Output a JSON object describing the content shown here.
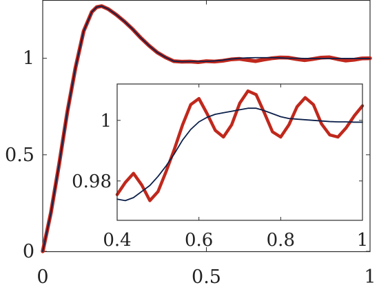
{
  "chart_data": [
    {
      "id": "main",
      "type": "line",
      "title": "",
      "xlabel": "",
      "ylabel": "",
      "xlim": [
        0,
        1
      ],
      "ylim": [
        0,
        1.3
      ],
      "xticks": [
        0,
        0.5,
        1
      ],
      "xtick_labels": [
        "0",
        "0.5",
        "1"
      ],
      "yticks": [
        0,
        0.5,
        1
      ],
      "ytick_labels": [
        "0",
        "0.5",
        "1"
      ],
      "grid": false,
      "legend": "none",
      "series": [
        {
          "color": "#c0281c",
          "style": "thick",
          "points": [
            [
              0,
              0
            ],
            [
              0.025,
              0.2
            ],
            [
              0.05,
              0.45
            ],
            [
              0.075,
              0.72
            ],
            [
              0.1,
              0.95
            ],
            [
              0.125,
              1.14
            ],
            [
              0.15,
              1.24
            ],
            [
              0.165,
              1.265
            ],
            [
              0.18,
              1.27
            ],
            [
              0.2,
              1.255
            ],
            [
              0.225,
              1.225
            ],
            [
              0.25,
              1.19
            ],
            [
              0.275,
              1.15
            ],
            [
              0.3,
              1.105
            ],
            [
              0.325,
              1.065
            ],
            [
              0.35,
              1.03
            ],
            [
              0.375,
              1.005
            ],
            [
              0.4,
              0.985
            ],
            [
              0.425,
              0.982
            ],
            [
              0.45,
              0.983
            ],
            [
              0.475,
              0.98
            ],
            [
              0.5,
              0.985
            ],
            [
              0.525,
              0.983
            ],
            [
              0.55,
              0.987
            ],
            [
              0.575,
              0.994
            ],
            [
              0.6,
              0.997
            ],
            [
              0.625,
              0.991
            ],
            [
              0.65,
              0.985
            ],
            [
              0.675,
              0.993
            ],
            [
              0.7,
              1.0
            ],
            [
              0.725,
              1.004
            ],
            [
              0.75,
              1.003
            ],
            [
              0.775,
              0.996
            ],
            [
              0.8,
              0.99
            ],
            [
              0.825,
              0.996
            ],
            [
              0.85,
              1.003
            ],
            [
              0.875,
              1.005
            ],
            [
              0.9,
              0.996
            ],
            [
              0.925,
              0.988
            ],
            [
              0.95,
              0.992
            ],
            [
              0.975,
              0.999
            ],
            [
              1.0,
              1.0
            ]
          ]
        },
        {
          "color": "#0b1f4a",
          "style": "thin",
          "points": [
            [
              0,
              0
            ],
            [
              0.025,
              0.2
            ],
            [
              0.05,
              0.45
            ],
            [
              0.075,
              0.72
            ],
            [
              0.1,
              0.95
            ],
            [
              0.125,
              1.14
            ],
            [
              0.15,
              1.24
            ],
            [
              0.165,
              1.265
            ],
            [
              0.18,
              1.27
            ],
            [
              0.2,
              1.255
            ],
            [
              0.225,
              1.225
            ],
            [
              0.25,
              1.19
            ],
            [
              0.275,
              1.15
            ],
            [
              0.3,
              1.105
            ],
            [
              0.325,
              1.065
            ],
            [
              0.35,
              1.03
            ],
            [
              0.375,
              1.005
            ],
            [
              0.4,
              0.985
            ],
            [
              0.425,
              0.982
            ],
            [
              0.45,
              0.983
            ],
            [
              0.475,
              0.983
            ],
            [
              0.5,
              0.984
            ],
            [
              0.525,
              0.986
            ],
            [
              0.55,
              0.99
            ],
            [
              0.575,
              0.996
            ],
            [
              0.6,
              1.0
            ],
            [
              0.625,
              1.002
            ],
            [
              0.65,
              1.003
            ],
            [
              0.675,
              1.003
            ],
            [
              0.7,
              1.003
            ],
            [
              0.725,
              1.002
            ],
            [
              0.75,
              1.0
            ],
            [
              0.775,
              1.0
            ],
            [
              0.8,
              0.999
            ],
            [
              0.85,
              0.999
            ],
            [
              0.9,
              0.999
            ],
            [
              0.95,
              0.999
            ],
            [
              1.0,
              0.999
            ]
          ]
        }
      ]
    },
    {
      "id": "inset",
      "type": "line",
      "title": "",
      "xlabel": "",
      "ylabel": "",
      "xlim": [
        0.4,
        1
      ],
      "ylim": [
        0.967,
        1.012
      ],
      "xticks": [
        0.4,
        0.6,
        0.8,
        1
      ],
      "xtick_labels": [
        "0.4",
        "0.6",
        "0.8",
        "1"
      ],
      "yticks": [
        0.98,
        1
      ],
      "ytick_labels": [
        "0.98",
        "1"
      ],
      "grid": false,
      "legend": "none",
      "series": [
        {
          "color": "#c0281c",
          "style": "thick",
          "points": [
            [
              0.4,
              0.9755
            ],
            [
              0.42,
              0.9795
            ],
            [
              0.44,
              0.9825
            ],
            [
              0.46,
              0.9787
            ],
            [
              0.48,
              0.9735
            ],
            [
              0.5,
              0.9765
            ],
            [
              0.52,
              0.9832
            ],
            [
              0.54,
              0.9905
            ],
            [
              0.56,
              0.9985
            ],
            [
              0.58,
              1.0052
            ],
            [
              0.6,
              1.0072
            ],
            [
              0.62,
              1.0022
            ],
            [
              0.64,
              0.9967
            ],
            [
              0.66,
              0.9945
            ],
            [
              0.68,
              0.9985
            ],
            [
              0.7,
              1.0057
            ],
            [
              0.72,
              1.0097
            ],
            [
              0.74,
              1.0085
            ],
            [
              0.76,
              1.0025
            ],
            [
              0.78,
              0.9962
            ],
            [
              0.8,
              0.9945
            ],
            [
              0.82,
              0.9985
            ],
            [
              0.84,
              1.0045
            ],
            [
              0.86,
              1.0075
            ],
            [
              0.88,
              1.0052
            ],
            [
              0.9,
              0.9988
            ],
            [
              0.92,
              0.9952
            ],
            [
              0.94,
              0.9945
            ],
            [
              0.96,
              0.9975
            ],
            [
              0.98,
              1.0015
            ],
            [
              1.0,
              1.0048
            ]
          ]
        },
        {
          "color": "#0b1f4a",
          "style": "thin",
          "points": [
            [
              0.4,
              0.974
            ],
            [
              0.42,
              0.9735
            ],
            [
              0.44,
              0.9745
            ],
            [
              0.46,
              0.9765
            ],
            [
              0.48,
              0.9785
            ],
            [
              0.5,
              0.9815
            ],
            [
              0.52,
              0.985
            ],
            [
              0.54,
              0.989
            ],
            [
              0.56,
              0.9935
            ],
            [
              0.58,
              0.997
            ],
            [
              0.6,
              0.9995
            ],
            [
              0.62,
              1.001
            ],
            [
              0.64,
              1.002
            ],
            [
              0.66,
              1.0025
            ],
            [
              0.68,
              1.003
            ],
            [
              0.7,
              1.0035
            ],
            [
              0.72,
              1.004
            ],
            [
              0.74,
              1.004
            ],
            [
              0.76,
              1.0032
            ],
            [
              0.78,
              1.0022
            ],
            [
              0.8,
              1.0012
            ],
            [
              0.82,
              1.0006
            ],
            [
              0.84,
              1.0004
            ],
            [
              0.86,
              1.0002
            ],
            [
              0.88,
              1.0
            ],
            [
              0.9,
              0.9998
            ],
            [
              0.92,
              0.9996
            ],
            [
              0.94,
              0.9995
            ],
            [
              0.96,
              0.9995
            ],
            [
              0.98,
              0.9994
            ],
            [
              1.0,
              0.9994
            ]
          ]
        }
      ]
    }
  ]
}
